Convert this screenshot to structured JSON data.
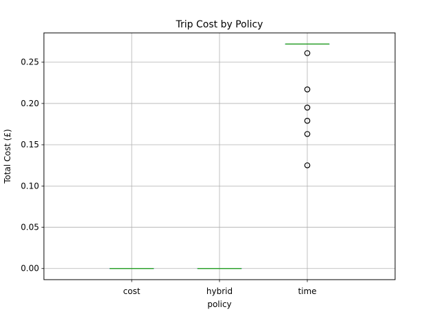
{
  "chart_data": {
    "type": "box",
    "title": "Trip Cost by Policy",
    "xlabel": "policy",
    "ylabel": "Total Cost (£)",
    "categories": [
      "cost",
      "hybrid",
      "time"
    ],
    "ylim": [
      -0.0135,
      0.2855
    ],
    "yticks": [
      0.0,
      0.05,
      0.1,
      0.15,
      0.2,
      0.25
    ],
    "ytick_labels": [
      "0.00",
      "0.05",
      "0.10",
      "0.15",
      "0.20",
      "0.25"
    ],
    "grid": true,
    "boxes": [
      {
        "category": "cost",
        "whislo": 0.0,
        "q1": 0.0,
        "median": 0.0,
        "q3": 0.0,
        "whishi": 0.0,
        "fliers": []
      },
      {
        "category": "hybrid",
        "whislo": 0.0,
        "q1": 0.0,
        "median": 0.0,
        "q3": 0.0,
        "whishi": 0.0,
        "fliers": []
      },
      {
        "category": "time",
        "whislo": 0.272,
        "q1": 0.272,
        "median": 0.272,
        "q3": 0.272,
        "whishi": 0.272,
        "fliers": [
          0.261,
          0.217,
          0.195,
          0.179,
          0.163,
          0.125
        ]
      }
    ],
    "colors": {
      "box": "#1f77b4",
      "median": "#2ca02c",
      "grid": "#b0b0b0",
      "flier": "#000000"
    }
  }
}
